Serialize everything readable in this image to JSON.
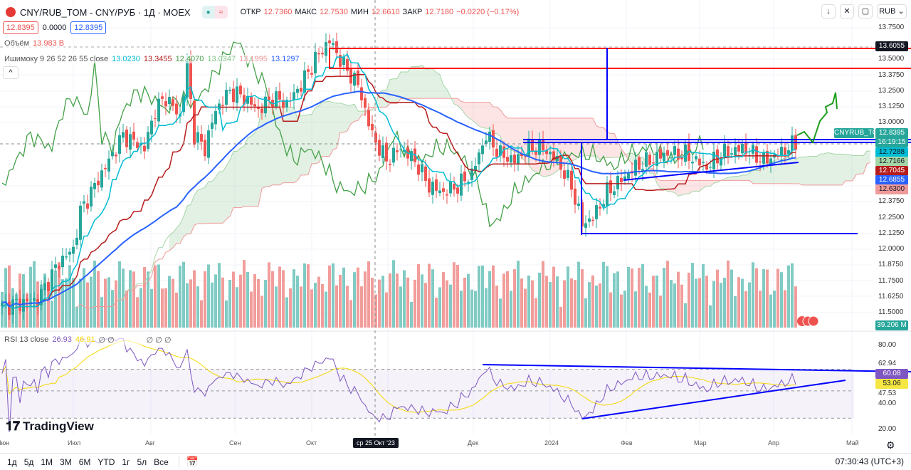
{
  "header": {
    "symbol": "CNY/RUB_TOM - CNY/РУБ · 1Д · MOEX",
    "open_label": "ОТКР",
    "open": "12.7360",
    "high_label": "МАКС",
    "high": "12.7530",
    "low_label": "МИН",
    "low": "12.6610",
    "close_label": "ЗАКР",
    "close": "12.7180",
    "change": "−0.0220 (−0.17%)",
    "sell": "12.8395",
    "spread": "0.0000",
    "buy": "12.8395"
  },
  "volume": {
    "label": "Объём",
    "value": "13.983 B",
    "tag": "39.206 M"
  },
  "ichimoku": {
    "label": "Ишимоку 9 26 52 26 55 close",
    "values": [
      "13.0230",
      "13.3455",
      "12.4070",
      "13.0347",
      "13.1995",
      "13.1297"
    ]
  },
  "rsi": {
    "label": "RSI 13 close",
    "v1": "26.93",
    "v2": "46.91",
    "na": "∅ ∅",
    "na2": "∅ ∅ ∅",
    "tags": [
      "60.08",
      "53.06"
    ],
    "axis": [
      "80.00",
      "62.94",
      "47.53",
      "40.00",
      "20.00"
    ]
  },
  "controls": {
    "currency": "RUB",
    "collapse": "^"
  },
  "price_axis": [
    "13.7500",
    "13.5000",
    "13.3750",
    "13.2500",
    "13.1250",
    "13.0000",
    "12.3750",
    "12.2500",
    "12.1250",
    "12.0000",
    "11.8750",
    "11.7500",
    "11.6250",
    "11.5000"
  ],
  "price_tags": {
    "alert": "13.6055",
    "symbol_label": "CNYRUB_TOM",
    "last": "12.8395",
    "countdown": "16:19:15",
    "t1": "12.7288",
    "t2": "12.7166",
    "t3": "12.7045",
    "t4": "12.6855",
    "t5": "12.6300"
  },
  "time_axis": [
    "Июн",
    "Июл",
    "Авг",
    "Сен",
    "Окт",
    "Дек",
    "2024",
    "Фев",
    "Мар",
    "Апр",
    "Май"
  ],
  "crosshair_date": "ср 25 Окт '23",
  "ranges": [
    "1д",
    "5д",
    "1М",
    "3М",
    "6М",
    "YTD",
    "1г",
    "5л",
    "Все"
  ],
  "clock": "07:30:43 (UTC+3)",
  "brand": "TradingView",
  "colors": {
    "up": "#26a69a",
    "down": "#ef5350",
    "ma": "#2962ff",
    "tenkan": "#00bcd4",
    "kijun": "#b71c1c",
    "chikou": "#43a047"
  },
  "chart_data": {
    "type": "candlestick",
    "title": "CNY/RUB_TOM 1D",
    "ylim": [
      11.45,
      13.8
    ],
    "close_keypoints": [
      [
        0,
        11.55
      ],
      [
        10,
        11.6
      ],
      [
        16,
        11.9
      ],
      [
        20,
        12.0
      ],
      [
        22,
        12.3
      ],
      [
        26,
        12.5
      ],
      [
        30,
        12.7
      ],
      [
        34,
        12.9
      ],
      [
        40,
        12.8
      ],
      [
        43,
        13.1
      ],
      [
        46,
        13.2
      ],
      [
        50,
        13.05
      ],
      [
        52,
        13.45
      ],
      [
        54,
        12.9
      ],
      [
        57,
        12.8
      ],
      [
        60,
        13.1
      ],
      [
        64,
        13.25
      ],
      [
        68,
        13.2
      ],
      [
        72,
        13.1
      ],
      [
        76,
        13.2
      ],
      [
        80,
        13.15
      ],
      [
        84,
        13.3
      ],
      [
        88,
        13.5
      ],
      [
        92,
        13.65
      ],
      [
        94,
        13.55
      ],
      [
        96,
        13.45
      ],
      [
        100,
        13.3
      ],
      [
        104,
        12.9
      ],
      [
        108,
        12.7
      ],
      [
        112,
        12.8
      ],
      [
        116,
        12.7
      ],
      [
        120,
        12.5
      ],
      [
        124,
        12.45
      ],
      [
        128,
        12.5
      ],
      [
        132,
        12.6
      ],
      [
        136,
        12.9
      ],
      [
        140,
        12.75
      ],
      [
        144,
        12.7
      ],
      [
        148,
        12.8
      ],
      [
        152,
        12.8
      ],
      [
        156,
        12.7
      ],
      [
        160,
        12.5
      ],
      [
        163,
        12.2
      ],
      [
        166,
        12.25
      ],
      [
        170,
        12.45
      ],
      [
        174,
        12.55
      ],
      [
        178,
        12.65
      ],
      [
        182,
        12.7
      ],
      [
        186,
        12.75
      ],
      [
        192,
        12.75
      ],
      [
        198,
        12.65
      ],
      [
        202,
        12.75
      ],
      [
        208,
        12.8
      ],
      [
        214,
        12.7
      ],
      [
        218,
        12.75
      ],
      [
        223,
        12.84
      ]
    ]
  }
}
